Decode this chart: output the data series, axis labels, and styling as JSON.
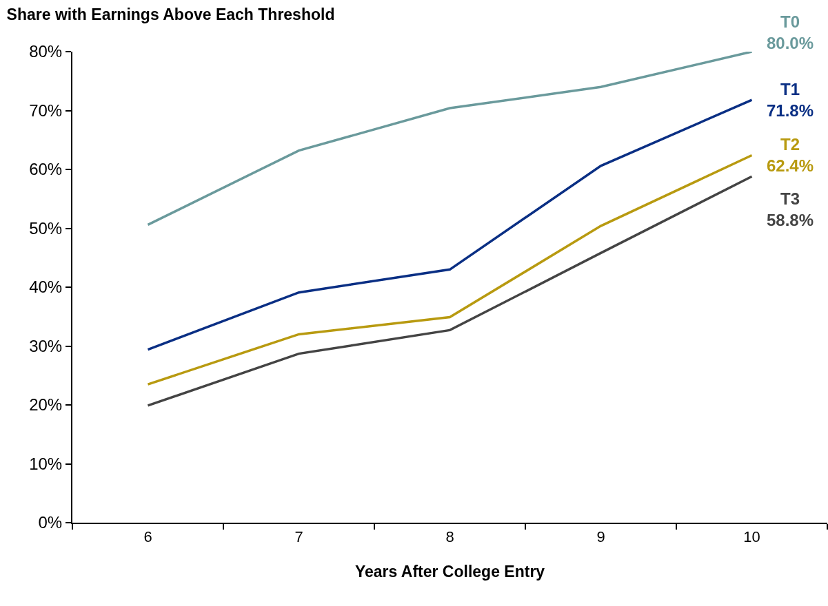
{
  "chart_data": {
    "type": "line",
    "title": "Share with Earnings Above Each Threshold",
    "xlabel": "Years After College Entry",
    "categories": [
      "6",
      "7",
      "8",
      "9",
      "10"
    ],
    "ylim": [
      0,
      80
    ],
    "yticks": [
      {
        "value": 0,
        "label": "0%"
      },
      {
        "value": 10,
        "label": "10%"
      },
      {
        "value": 20,
        "label": "20%"
      },
      {
        "value": 30,
        "label": "30%"
      },
      {
        "value": 40,
        "label": "40%"
      },
      {
        "value": 50,
        "label": "50%"
      },
      {
        "value": 60,
        "label": "60%"
      },
      {
        "value": 70,
        "label": "70%"
      },
      {
        "value": 80,
        "label": "80%"
      }
    ],
    "grid": false,
    "legend": false,
    "marker": "none",
    "line_style": "solid",
    "series": [
      {
        "name": "T0",
        "color": "#6a9a9c",
        "values": [
          50.6,
          63.2,
          70.4,
          74.0,
          80.0
        ],
        "value_labels": [
          null,
          null,
          null,
          null,
          "80.0%"
        ]
      },
      {
        "name": "T1",
        "color": "#0a2f84",
        "values": [
          29.4,
          39.1,
          43.0,
          60.6,
          71.8
        ],
        "value_labels": [
          null,
          null,
          null,
          null,
          "71.8%"
        ]
      },
      {
        "name": "T2",
        "color": "#b89a10",
        "values": [
          23.5,
          32.0,
          34.9,
          50.4,
          62.4
        ],
        "value_labels": [
          null,
          null,
          null,
          null,
          "62.4%"
        ]
      },
      {
        "name": "T3",
        "color": "#444444",
        "values": [
          19.9,
          28.7,
          32.7,
          45.8,
          58.8
        ],
        "value_labels": [
          null,
          null,
          null,
          null,
          "58.8%"
        ]
      }
    ]
  }
}
